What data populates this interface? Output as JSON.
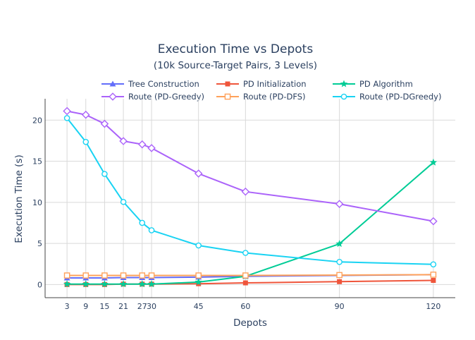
{
  "chart_data": {
    "type": "line",
    "title": "Execution Time vs Depots",
    "subtitle": "(10k Source-Target Pairs, 3 Levels)",
    "xlabel": "Depots",
    "ylabel": "Execution Time (s)",
    "x": [
      3,
      9,
      15,
      21,
      27,
      30,
      45,
      60,
      90,
      120
    ],
    "x_tick_labels": [
      "3",
      "9",
      "15",
      "21",
      "27",
      "30",
      "45",
      "60",
      "90",
      "120"
    ],
    "xlim": [
      -4,
      127
    ],
    "ylim": [
      -1.6,
      22.6
    ],
    "y_ticks": [
      0,
      5,
      10,
      15,
      20
    ],
    "y_tick_labels": [
      "0",
      "5",
      "10",
      "15",
      "20"
    ],
    "grid": true,
    "legend_position": "top",
    "series": [
      {
        "name": "Tree Construction",
        "color": "#636efa",
        "marker": "triangle-up",
        "values": [
          0.8,
          0.8,
          0.8,
          0.85,
          0.85,
          0.85,
          0.9,
          1.0,
          1.1,
          1.2
        ]
      },
      {
        "name": "PD Initialization",
        "color": "#ef553b",
        "marker": "square",
        "values": [
          0.0,
          0.0,
          0.0,
          0.05,
          0.05,
          0.05,
          0.1,
          0.2,
          0.35,
          0.5
        ]
      },
      {
        "name": "PD Algorithm",
        "color": "#00cc96",
        "marker": "star",
        "values": [
          0.05,
          0.05,
          0.05,
          0.05,
          0.05,
          0.05,
          0.3,
          1.0,
          4.95,
          14.85
        ]
      },
      {
        "name": "Route (PD-Greedy)",
        "color": "#ab63fa",
        "marker": "diamond-open",
        "values": [
          21.1,
          20.65,
          19.55,
          17.45,
          17.05,
          16.6,
          13.5,
          11.3,
          9.8,
          7.7
        ]
      },
      {
        "name": "Route (PD-DFS)",
        "color": "#ffa15a",
        "marker": "square-open",
        "values": [
          1.1,
          1.1,
          1.1,
          1.1,
          1.1,
          1.1,
          1.1,
          1.1,
          1.15,
          1.2
        ]
      },
      {
        "name": "Route (PD-DGreedy)",
        "color": "#19d3f3",
        "marker": "circle-open",
        "values": [
          20.25,
          17.35,
          13.45,
          10.05,
          7.5,
          6.6,
          4.75,
          3.85,
          2.75,
          2.45
        ]
      }
    ]
  }
}
